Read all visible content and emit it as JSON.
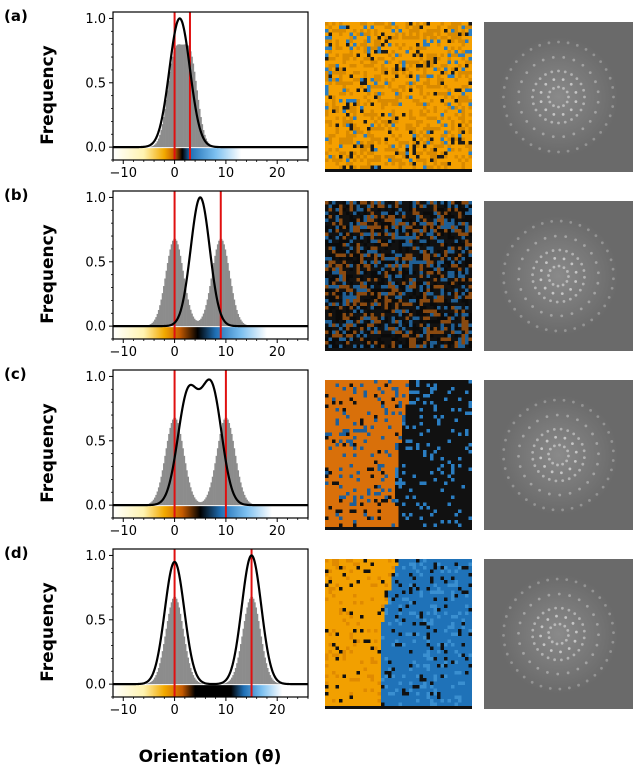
{
  "figure": {
    "xlabel": "Orientation (θ)",
    "ylabel": "Frequency"
  },
  "chart_data": [
    {
      "type": "area",
      "panel_label": "(a)",
      "xlim": [
        -12,
        26
      ],
      "ylim": [
        -0.1,
        1.05
      ],
      "xticks": [
        -10,
        0,
        10,
        20
      ],
      "yticks": [
        0.0,
        0.5,
        1.0
      ],
      "red_lines": [
        0,
        3
      ],
      "histogram": [
        {
          "center": 0,
          "sigma": 1.45,
          "height": 0.68
        },
        {
          "center": 3,
          "sigma": 1.45,
          "height": 0.68
        }
      ],
      "curve": [
        {
          "center": 1,
          "sigma": 2.0,
          "height": 1.0
        }
      ],
      "colorbar_stops": [
        [
          -12,
          "#ffffff"
        ],
        [
          -6,
          "#fff3b0"
        ],
        [
          -2,
          "#f2a900"
        ],
        [
          0,
          "#c55a00"
        ],
        [
          1.5,
          "#000000"
        ],
        [
          3,
          "#1f6fb5"
        ],
        [
          8,
          "#7cc0f0"
        ],
        [
          13,
          "#ffffff"
        ],
        [
          26,
          "#ffffff"
        ]
      ],
      "images": {
        "map_colors": [
          "#f5a000",
          "#1a1a1a",
          "#d98a00",
          "#2a7dc1"
        ],
        "map_split": null,
        "map_bias": 0.85
      }
    },
    {
      "type": "area",
      "panel_label": "(b)",
      "xlim": [
        -12,
        26
      ],
      "ylim": [
        -0.1,
        1.05
      ],
      "xticks": [
        -10,
        0,
        10,
        20
      ],
      "yticks": [
        0.0,
        0.5,
        1.0
      ],
      "red_lines": [
        0,
        9
      ],
      "histogram": [
        {
          "center": 0,
          "sigma": 1.7,
          "height": 0.68
        },
        {
          "center": 9,
          "sigma": 1.7,
          "height": 0.68
        }
      ],
      "curve": [
        {
          "center": 5,
          "sigma": 1.85,
          "height": 1.0
        }
      ],
      "colorbar_stops": [
        [
          -12,
          "#ffffff"
        ],
        [
          -6,
          "#fff3b0"
        ],
        [
          -2,
          "#f2a900"
        ],
        [
          1,
          "#c55a00"
        ],
        [
          4.5,
          "#000000"
        ],
        [
          8,
          "#1f6fb5"
        ],
        [
          13,
          "#7cc0f0"
        ],
        [
          18,
          "#ffffff"
        ],
        [
          26,
          "#ffffff"
        ]
      ],
      "images": {
        "map_colors": [
          "#111111",
          "#8a4a10",
          "#1f5f95",
          "#0a0a0a"
        ],
        "map_split": null,
        "map_bias": 0.5
      }
    },
    {
      "type": "area",
      "panel_label": "(c)",
      "xlim": [
        -12,
        26
      ],
      "ylim": [
        -0.1,
        1.05
      ],
      "xticks": [
        -10,
        0,
        10,
        20
      ],
      "yticks": [
        0.0,
        0.5,
        1.0
      ],
      "red_lines": [
        0,
        10
      ],
      "histogram": [
        {
          "center": 0,
          "sigma": 1.75,
          "height": 0.68
        },
        {
          "center": 10,
          "sigma": 1.75,
          "height": 0.68
        }
      ],
      "curve": [
        {
          "center": 2.6,
          "sigma": 2.0,
          "height": 0.85
        },
        {
          "center": 7.2,
          "sigma": 2.0,
          "height": 0.9
        }
      ],
      "colorbar_stops": [
        [
          -12,
          "#ffffff"
        ],
        [
          -6,
          "#fff3b0"
        ],
        [
          -2,
          "#f2a900"
        ],
        [
          1.5,
          "#c55a00"
        ],
        [
          5,
          "#000000"
        ],
        [
          9,
          "#1f6fb5"
        ],
        [
          14,
          "#7cc0f0"
        ],
        [
          19,
          "#ffffff"
        ],
        [
          26,
          "#ffffff"
        ]
      ],
      "images": {
        "map_colors": [
          "#d9700a",
          "#1e5f9a",
          "#111111",
          "#2a7dc1"
        ],
        "map_split": 0.52,
        "map_bias": 0.5
      }
    },
    {
      "type": "area",
      "panel_label": "(d)",
      "xlim": [
        -12,
        26
      ],
      "ylim": [
        -0.1,
        1.05
      ],
      "xticks": [
        -10,
        0,
        10,
        20
      ],
      "yticks": [
        0.0,
        0.5,
        1.0
      ],
      "red_lines": [
        0,
        15
      ],
      "histogram": [
        {
          "center": 0,
          "sigma": 1.7,
          "height": 0.68
        },
        {
          "center": 15,
          "sigma": 1.7,
          "height": 0.68
        }
      ],
      "curve": [
        {
          "center": 0,
          "sigma": 1.9,
          "height": 0.95
        },
        {
          "center": 15,
          "sigma": 1.9,
          "height": 1.0
        }
      ],
      "colorbar_stops": [
        [
          -12,
          "#ffffff"
        ],
        [
          -6,
          "#fff3b0"
        ],
        [
          -2,
          "#f2a900"
        ],
        [
          1.5,
          "#c55a00"
        ],
        [
          4,
          "#000000"
        ],
        [
          11,
          "#000000"
        ],
        [
          13.5,
          "#1f6fb5"
        ],
        [
          17,
          "#7cc0f0"
        ],
        [
          21,
          "#ffffff"
        ],
        [
          26,
          "#ffffff"
        ]
      ],
      "images": {
        "map_colors": [
          "#f2a000",
          "#e08a00",
          "#1f72b8",
          "#3a8fd0"
        ],
        "map_split": 0.48,
        "map_bias": 0.5
      }
    }
  ]
}
